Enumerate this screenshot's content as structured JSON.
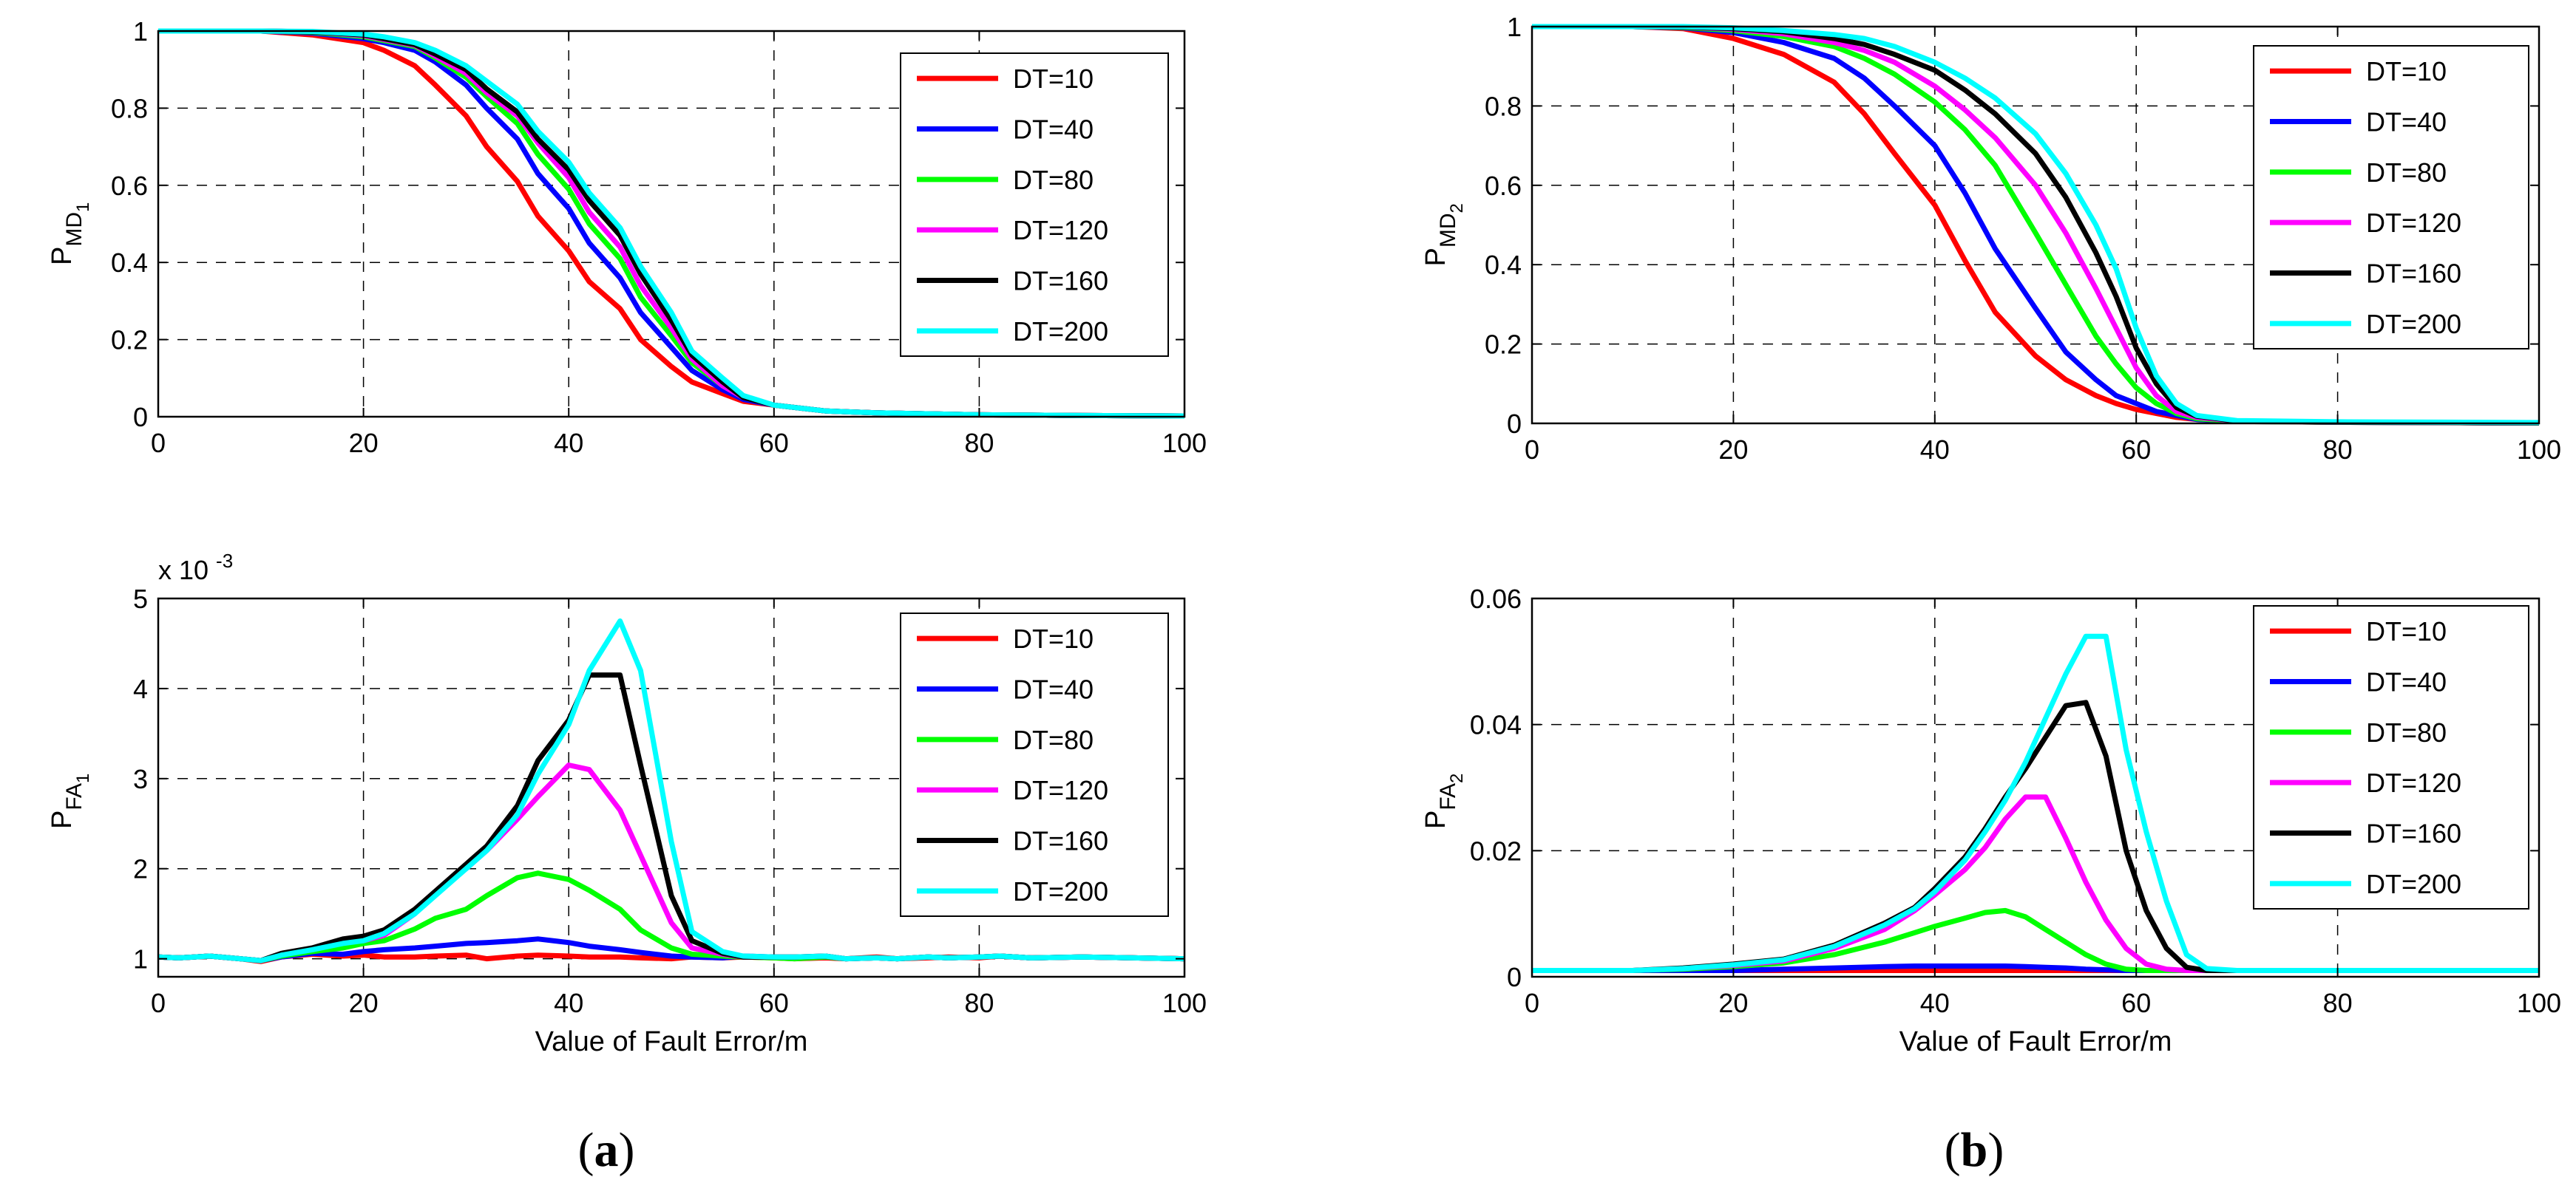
{
  "chart_data": [
    {
      "id": "a1",
      "type": "line",
      "title": "",
      "xlabel": "",
      "ylabel_main": "P",
      "ylabel_sub": "MD",
      "ylabel_subsub": "1",
      "xlim": [
        0,
        100
      ],
      "ylim": [
        0,
        1
      ],
      "xticks": [
        0,
        20,
        40,
        60,
        80,
        100
      ],
      "yticks": [
        0,
        0.2,
        0.4,
        0.6,
        0.8,
        1
      ],
      "ytick_labels": [
        "0",
        "0.2",
        "0.4",
        "0.6",
        "0.8",
        "1"
      ],
      "grid": true,
      "legend_position": "top-right",
      "x": [
        0,
        10,
        15,
        20,
        22,
        25,
        27,
        30,
        32,
        35,
        37,
        40,
        42,
        45,
        47,
        50,
        52,
        55,
        57,
        60,
        65,
        70,
        80,
        90,
        100
      ],
      "series": [
        {
          "name": "DT=10",
          "color": "#ff0000",
          "values": [
            1,
            1,
            0.99,
            0.97,
            0.95,
            0.91,
            0.86,
            0.78,
            0.7,
            0.61,
            0.52,
            0.43,
            0.35,
            0.28,
            0.2,
            0.13,
            0.09,
            0.06,
            0.04,
            0.03,
            0.015,
            0.01,
            0.005,
            0.003,
            0.002
          ]
        },
        {
          "name": "DT=40",
          "color": "#0000ff",
          "values": [
            1,
            1,
            0.995,
            0.98,
            0.97,
            0.95,
            0.92,
            0.86,
            0.8,
            0.72,
            0.63,
            0.54,
            0.45,
            0.36,
            0.27,
            0.18,
            0.12,
            0.07,
            0.045,
            0.03,
            0.015,
            0.01,
            0.005,
            0.003,
            0.002
          ]
        },
        {
          "name": "DT=80",
          "color": "#00ff00",
          "values": [
            1,
            1,
            0.997,
            0.985,
            0.975,
            0.96,
            0.93,
            0.88,
            0.83,
            0.76,
            0.68,
            0.59,
            0.5,
            0.41,
            0.31,
            0.21,
            0.14,
            0.08,
            0.05,
            0.03,
            0.015,
            0.01,
            0.005,
            0.003,
            0.002
          ]
        },
        {
          "name": "DT=120",
          "color": "#ff00ff",
          "values": [
            1,
            1,
            0.998,
            0.988,
            0.978,
            0.963,
            0.935,
            0.89,
            0.84,
            0.78,
            0.71,
            0.62,
            0.53,
            0.44,
            0.34,
            0.23,
            0.15,
            0.08,
            0.05,
            0.03,
            0.015,
            0.01,
            0.005,
            0.003,
            0.002
          ]
        },
        {
          "name": "DT=160",
          "color": "#000000",
          "values": [
            1,
            1,
            0.998,
            0.99,
            0.98,
            0.965,
            0.94,
            0.9,
            0.85,
            0.79,
            0.72,
            0.64,
            0.56,
            0.47,
            0.37,
            0.25,
            0.16,
            0.09,
            0.05,
            0.03,
            0.015,
            0.01,
            0.005,
            0.003,
            0.002
          ]
        },
        {
          "name": "DT=200",
          "color": "#00ffff",
          "values": [
            1,
            1,
            0.999,
            0.992,
            0.985,
            0.97,
            0.95,
            0.91,
            0.87,
            0.81,
            0.74,
            0.66,
            0.58,
            0.49,
            0.39,
            0.27,
            0.17,
            0.1,
            0.055,
            0.03,
            0.015,
            0.01,
            0.005,
            0.003,
            0.002
          ]
        }
      ]
    },
    {
      "id": "b1",
      "type": "line",
      "title": "",
      "xlabel": "",
      "ylabel_main": "P",
      "ylabel_sub": "MD",
      "ylabel_subsub": "2",
      "xlim": [
        0,
        100
      ],
      "ylim": [
        0,
        1
      ],
      "xticks": [
        0,
        20,
        40,
        60,
        80,
        100
      ],
      "yticks": [
        0,
        0.2,
        0.4,
        0.6,
        0.8,
        1
      ],
      "ytick_labels": [
        "0",
        "0.2",
        "0.4",
        "0.6",
        "0.8",
        "1"
      ],
      "grid": true,
      "legend_position": "top-right",
      "x": [
        0,
        10,
        15,
        20,
        25,
        30,
        33,
        36,
        40,
        43,
        46,
        50,
        53,
        56,
        58,
        60,
        62,
        64,
        66,
        70,
        80,
        90,
        100
      ],
      "series": [
        {
          "name": "DT=10",
          "color": "#ff0000",
          "values": [
            1,
            1,
            0.995,
            0.97,
            0.93,
            0.86,
            0.78,
            0.68,
            0.55,
            0.41,
            0.28,
            0.17,
            0.11,
            0.07,
            0.05,
            0.035,
            0.025,
            0.015,
            0.01,
            0.005,
            0.003,
            0.002,
            0.001
          ]
        },
        {
          "name": "DT=40",
          "color": "#0000ff",
          "values": [
            1,
            1,
            0.997,
            0.985,
            0.96,
            0.92,
            0.87,
            0.8,
            0.7,
            0.58,
            0.44,
            0.29,
            0.18,
            0.11,
            0.07,
            0.05,
            0.03,
            0.02,
            0.01,
            0.005,
            0.003,
            0.002,
            0.001
          ]
        },
        {
          "name": "DT=80",
          "color": "#00ff00",
          "values": [
            1,
            1,
            0.998,
            0.99,
            0.975,
            0.95,
            0.92,
            0.88,
            0.81,
            0.74,
            0.65,
            0.48,
            0.35,
            0.22,
            0.15,
            0.09,
            0.05,
            0.025,
            0.012,
            0.005,
            0.003,
            0.002,
            0.001
          ]
        },
        {
          "name": "DT=120",
          "color": "#ff00ff",
          "values": [
            1,
            1,
            0.999,
            0.993,
            0.982,
            0.96,
            0.94,
            0.91,
            0.85,
            0.79,
            0.72,
            0.6,
            0.48,
            0.34,
            0.24,
            0.14,
            0.07,
            0.03,
            0.015,
            0.006,
            0.003,
            0.002,
            0.001
          ]
        },
        {
          "name": "DT=160",
          "color": "#000000",
          "values": [
            1,
            1,
            0.999,
            0.995,
            0.987,
            0.97,
            0.955,
            0.93,
            0.89,
            0.84,
            0.78,
            0.68,
            0.57,
            0.43,
            0.32,
            0.19,
            0.1,
            0.04,
            0.018,
            0.006,
            0.003,
            0.002,
            0.001
          ]
        },
        {
          "name": "DT=200",
          "color": "#00ffff",
          "values": [
            1,
            1,
            1,
            0.997,
            0.99,
            0.98,
            0.97,
            0.95,
            0.91,
            0.87,
            0.82,
            0.73,
            0.63,
            0.5,
            0.39,
            0.24,
            0.12,
            0.05,
            0.02,
            0.007,
            0.004,
            0.003,
            0.002
          ]
        }
      ]
    },
    {
      "id": "a2",
      "type": "line",
      "title": "",
      "xlabel": "Value of Fault Error/m",
      "ylabel_main": "P",
      "ylabel_sub": "FA",
      "ylabel_subsub": "1",
      "exponent_label": "x 10",
      "exponent_power": "-3",
      "xlim": [
        0,
        100
      ],
      "ylim": [
        0.8,
        5
      ],
      "xticks": [
        0,
        20,
        40,
        60,
        80,
        100
      ],
      "yticks": [
        1,
        2,
        3,
        4,
        5
      ],
      "ytick_labels": [
        "1",
        "2",
        "3",
        "4",
        "5"
      ],
      "grid": true,
      "legend_position": "top-right",
      "x": [
        0,
        2,
        5,
        8,
        10,
        12,
        15,
        18,
        20,
        22,
        25,
        27,
        30,
        32,
        35,
        37,
        40,
        42,
        45,
        47,
        50,
        52,
        55,
        57,
        60,
        62,
        65,
        67,
        70,
        72,
        75,
        77,
        80,
        82,
        85,
        90,
        95,
        100
      ],
      "series": [
        {
          "name": "DT=10",
          "color": "#ff0000",
          "values": [
            1.02,
            1.01,
            1.03,
            1.0,
            0.97,
            1.02,
            1.05,
            1.03,
            1.04,
            1.02,
            1.02,
            1.03,
            1.04,
            1.0,
            1.03,
            1.04,
            1.03,
            1.02,
            1.02,
            1.01,
            1.0,
            1.02,
            1.01,
            1.02,
            1.01,
            1.0,
            1.01,
            1.0,
            1.02,
            1.0,
            1.01,
            1.02,
            1.01,
            1.03,
            1.01,
            1.02,
            1.01,
            1.0
          ]
        },
        {
          "name": "DT=40",
          "color": "#0000ff",
          "values": [
            1.02,
            1.01,
            1.03,
            1.0,
            0.98,
            1.02,
            1.06,
            1.05,
            1.08,
            1.1,
            1.12,
            1.14,
            1.17,
            1.18,
            1.2,
            1.22,
            1.18,
            1.14,
            1.1,
            1.07,
            1.03,
            1.02,
            1.01,
            1.03,
            1.02,
            1.01,
            1.02,
            1.0,
            1.01,
            1.0,
            1.02,
            1.01,
            1.02,
            1.03,
            1.01,
            1.02,
            1.01,
            1.0
          ]
        },
        {
          "name": "DT=80",
          "color": "#00ff00",
          "values": [
            1.02,
            1.01,
            1.03,
            1.0,
            0.98,
            1.03,
            1.08,
            1.12,
            1.17,
            1.2,
            1.33,
            1.45,
            1.55,
            1.7,
            1.9,
            1.95,
            1.88,
            1.76,
            1.55,
            1.32,
            1.12,
            1.05,
            1.03,
            1.02,
            1.01,
            1.0,
            1.02,
            1.0,
            1.01,
            1.0,
            1.02,
            1.01,
            1.02,
            1.03,
            1.01,
            1.02,
            1.01,
            1.0
          ]
        },
        {
          "name": "DT=120",
          "color": "#ff00ff",
          "values": [
            1.02,
            1.01,
            1.03,
            1.0,
            0.98,
            1.05,
            1.1,
            1.18,
            1.2,
            1.26,
            1.5,
            1.72,
            2.0,
            2.2,
            2.55,
            2.8,
            3.15,
            3.1,
            2.65,
            2.15,
            1.4,
            1.12,
            1.05,
            1.02,
            1.02,
            1.02,
            1.03,
            1.0,
            1.01,
            1.0,
            1.02,
            1.01,
            1.02,
            1.03,
            1.01,
            1.02,
            1.01,
            1.0
          ]
        },
        {
          "name": "DT=160",
          "color": "#000000",
          "values": [
            1.02,
            1.01,
            1.03,
            1.0,
            0.98,
            1.06,
            1.12,
            1.22,
            1.25,
            1.32,
            1.55,
            1.75,
            2.05,
            2.25,
            2.7,
            3.2,
            3.65,
            4.15,
            4.15,
            3.15,
            1.7,
            1.2,
            1.06,
            1.02,
            1.02,
            1.02,
            1.03,
            1.0,
            1.01,
            1.0,
            1.02,
            1.01,
            1.02,
            1.03,
            1.01,
            1.02,
            1.01,
            1.0
          ]
        },
        {
          "name": "DT=200",
          "color": "#00ffff",
          "values": [
            1.02,
            1.01,
            1.03,
            1.0,
            0.98,
            1.04,
            1.1,
            1.17,
            1.2,
            1.28,
            1.5,
            1.7,
            2.0,
            2.2,
            2.6,
            3.05,
            3.6,
            4.2,
            4.75,
            4.2,
            2.3,
            1.3,
            1.08,
            1.03,
            1.02,
            1.02,
            1.03,
            1.0,
            1.01,
            1.0,
            1.02,
            1.01,
            1.02,
            1.03,
            1.01,
            1.02,
            1.01,
            1.0
          ]
        }
      ]
    },
    {
      "id": "b2",
      "type": "line",
      "title": "",
      "xlabel": "Value of Fault Error/m",
      "ylabel_main": "P",
      "ylabel_sub": "FA",
      "ylabel_subsub": "2",
      "xlim": [
        0,
        100
      ],
      "ylim": [
        0,
        0.06
      ],
      "xticks": [
        0,
        20,
        40,
        60,
        80,
        100
      ],
      "yticks": [
        0,
        0.02,
        0.04,
        0.06
      ],
      "ytick_labels": [
        "0",
        "0.02",
        "0.04",
        "0.06"
      ],
      "grid": true,
      "legend_position": "top-right",
      "x": [
        0,
        10,
        15,
        20,
        25,
        30,
        35,
        38,
        40,
        43,
        45,
        47,
        49,
        51,
        53,
        55,
        57,
        59,
        61,
        63,
        65,
        67,
        70,
        80,
        90,
        100
      ],
      "series": [
        {
          "name": "DT=10",
          "color": "#ff0000",
          "values": [
            0.001,
            0.001,
            0.001,
            0.001,
            0.001,
            0.001,
            0.001,
            0.001,
            0.001,
            0.001,
            0.001,
            0.001,
            0.001,
            0.001,
            0.001,
            0.001,
            0.001,
            0.001,
            0.001,
            0.001,
            0.001,
            0.001,
            0.001,
            0.001,
            0.001,
            0.001
          ]
        },
        {
          "name": "DT=40",
          "color": "#0000ff",
          "values": [
            0.001,
            0.001,
            0.001,
            0.001,
            0.0012,
            0.0014,
            0.0016,
            0.0017,
            0.0017,
            0.0017,
            0.0017,
            0.0017,
            0.0016,
            0.0015,
            0.0014,
            0.0012,
            0.0011,
            0.001,
            0.001,
            0.001,
            0.001,
            0.001,
            0.001,
            0.001,
            0.001,
            0.001
          ]
        },
        {
          "name": "DT=80",
          "color": "#00ff00",
          "values": [
            0.001,
            0.001,
            0.0012,
            0.0016,
            0.0022,
            0.0035,
            0.0055,
            0.007,
            0.008,
            0.0093,
            0.0102,
            0.0105,
            0.0095,
            0.0075,
            0.0055,
            0.0035,
            0.002,
            0.0012,
            0.001,
            0.001,
            0.001,
            0.001,
            0.001,
            0.001,
            0.001,
            0.001
          ]
        },
        {
          "name": "DT=120",
          "color": "#ff00ff",
          "values": [
            0.001,
            0.001,
            0.0013,
            0.0018,
            0.0025,
            0.0045,
            0.0075,
            0.0105,
            0.013,
            0.017,
            0.0205,
            0.025,
            0.0285,
            0.0285,
            0.022,
            0.015,
            0.009,
            0.0045,
            0.002,
            0.0012,
            0.001,
            0.001,
            0.001,
            0.001,
            0.001,
            0.001
          ]
        },
        {
          "name": "DT=160",
          "color": "#000000",
          "values": [
            0.001,
            0.001,
            0.0014,
            0.002,
            0.0028,
            0.005,
            0.0085,
            0.011,
            0.014,
            0.019,
            0.0235,
            0.0285,
            0.033,
            0.038,
            0.043,
            0.0435,
            0.035,
            0.02,
            0.0105,
            0.0045,
            0.0015,
            0.001,
            0.001,
            0.001,
            0.001,
            0.001
          ]
        },
        {
          "name": "DT=200",
          "color": "#00ffff",
          "values": [
            0.001,
            0.001,
            0.0013,
            0.0019,
            0.0027,
            0.0048,
            0.0082,
            0.0108,
            0.0135,
            0.0185,
            0.023,
            0.028,
            0.034,
            0.041,
            0.048,
            0.054,
            0.054,
            0.036,
            0.023,
            0.012,
            0.0035,
            0.0013,
            0.001,
            0.001,
            0.001,
            0.001
          ]
        }
      ]
    }
  ],
  "subfigure_labels": {
    "a_open": "(",
    "a_letter": "a",
    "a_close": ")",
    "b_open": "(",
    "b_letter": "b",
    "b_close": ")"
  }
}
